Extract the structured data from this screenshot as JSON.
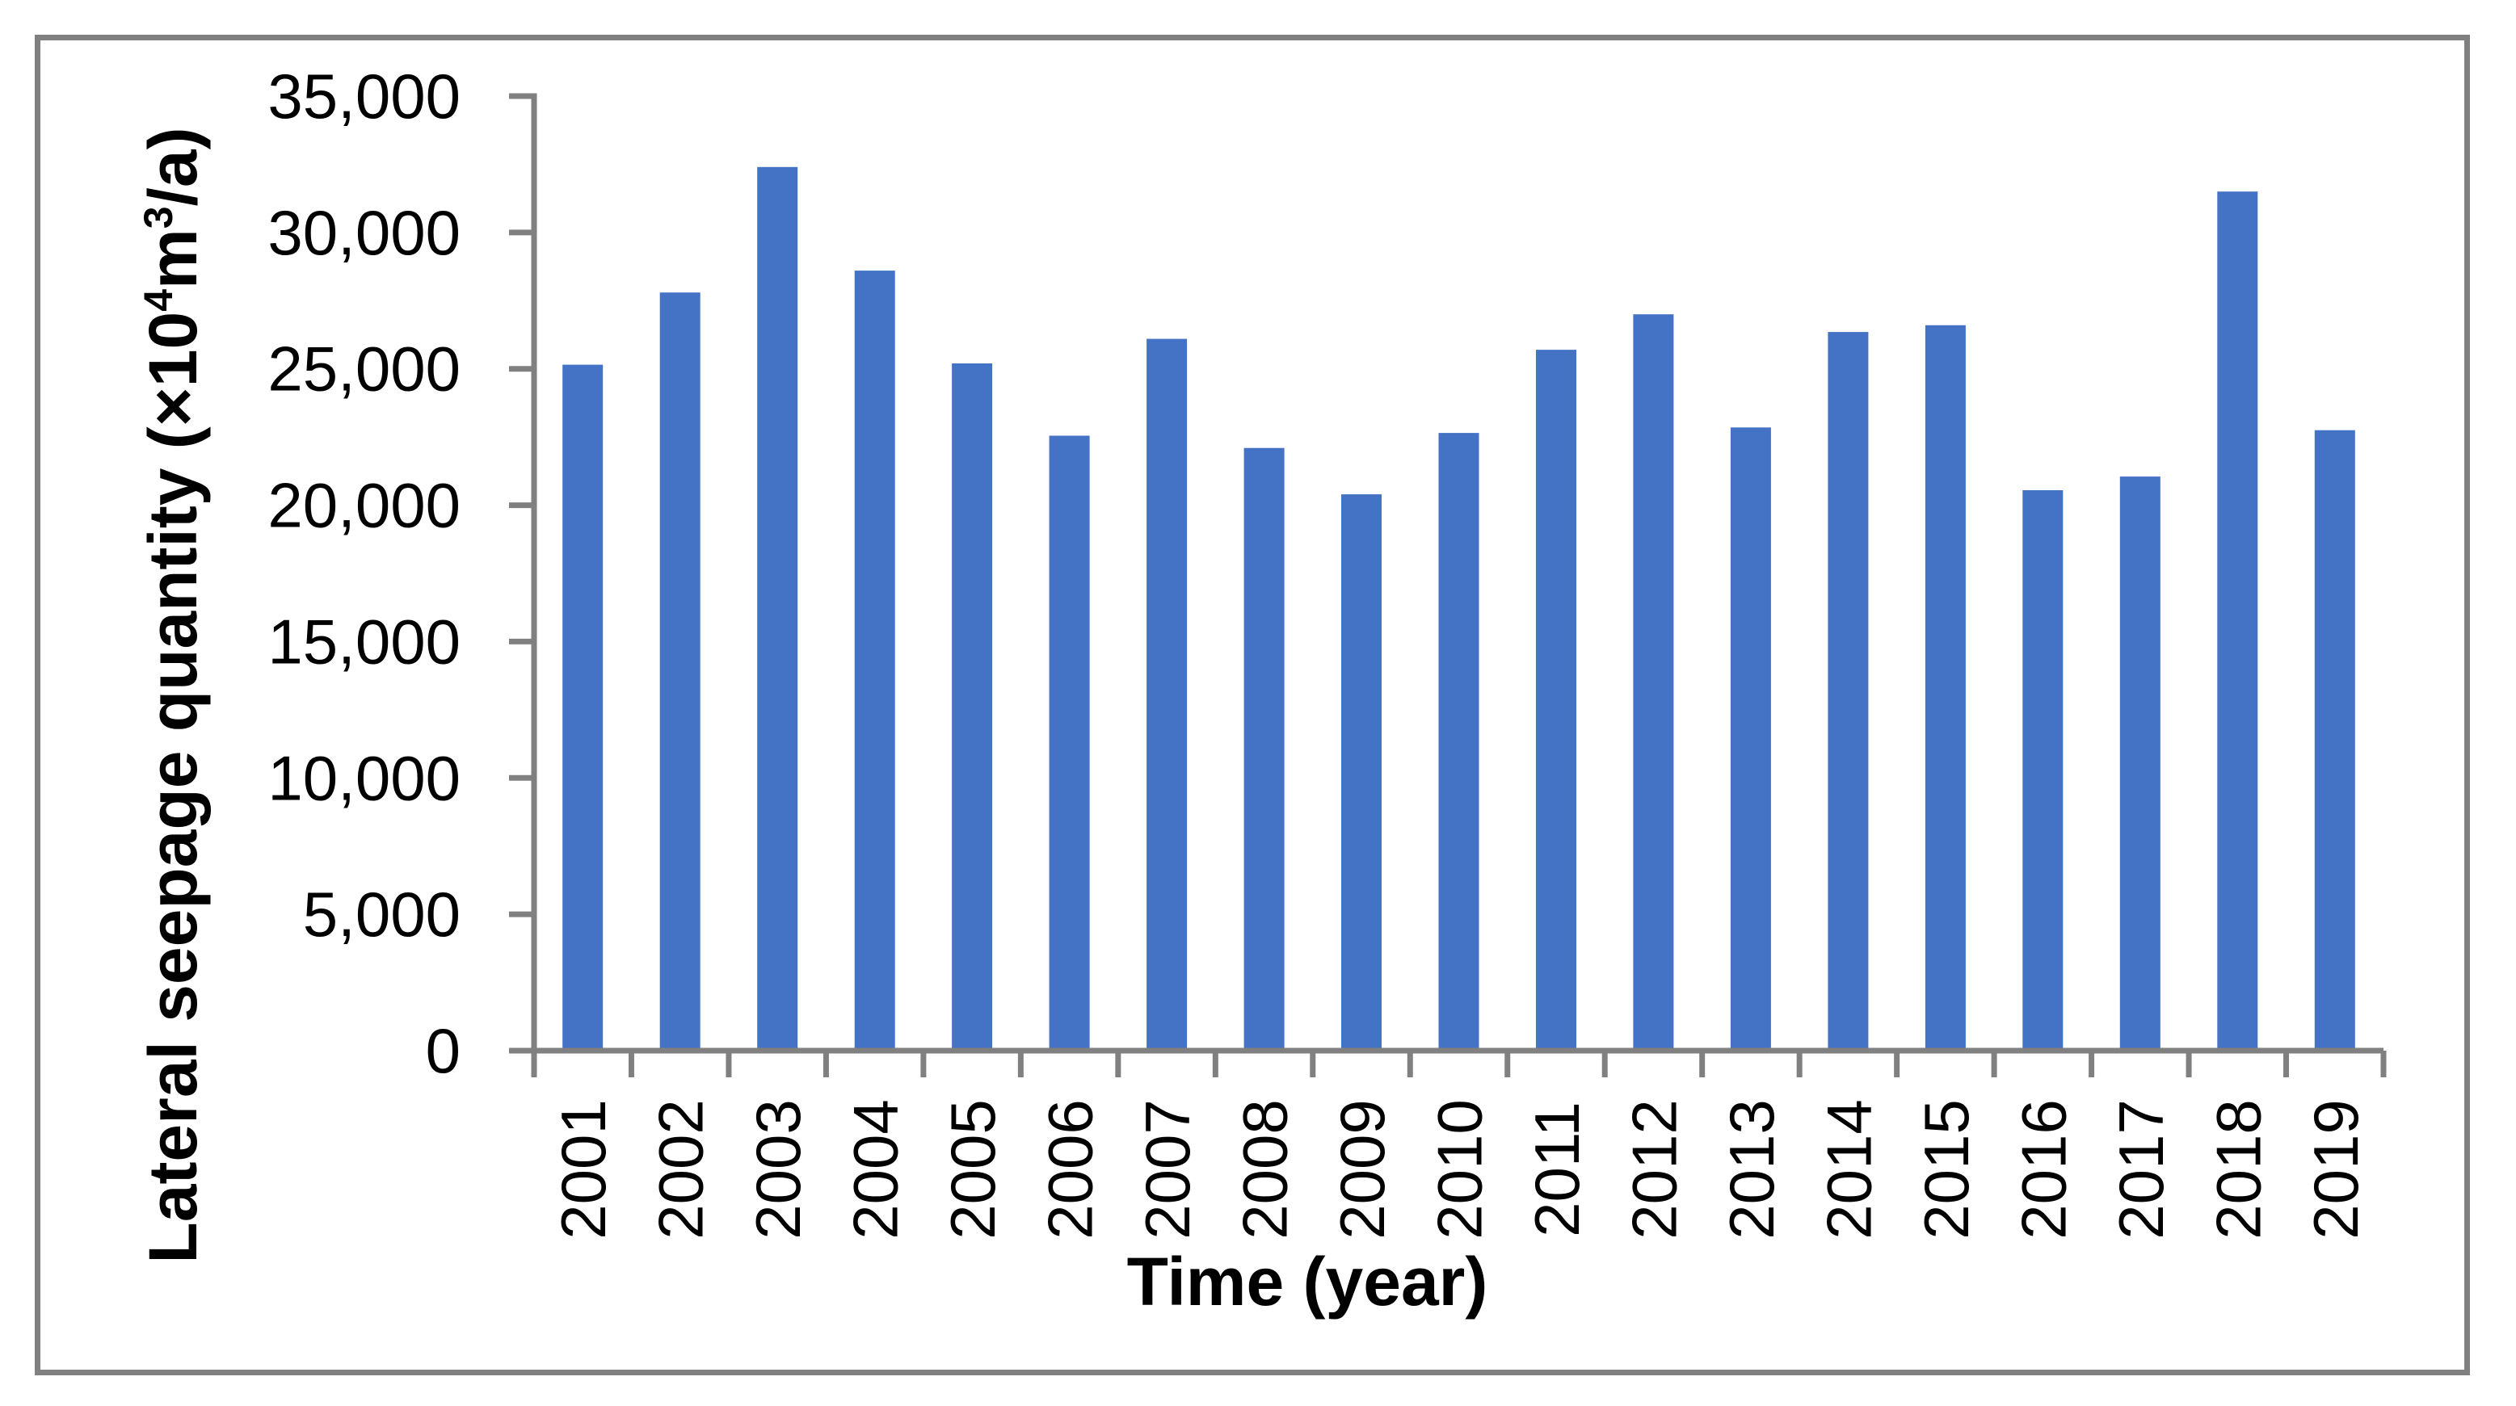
{
  "figure": {
    "background_color": "#ffffff",
    "border_color": "#808080"
  },
  "chart_data": {
    "type": "bar",
    "title": "",
    "xlabel": "Time (year)",
    "ylabel": "Lateral seepage quantity (×10⁴m³/a)",
    "ylabel_rich": [
      {
        "text": "Lateral seepage quantity (×10"
      },
      {
        "text": "4",
        "super": true
      },
      {
        "text": "m"
      },
      {
        "text": "3",
        "super": true
      },
      {
        "text": "/a)"
      }
    ],
    "categories": [
      "2001",
      "2002",
      "2003",
      "2004",
      "2005",
      "2006",
      "2007",
      "2008",
      "2009",
      "2010",
      "2011",
      "2012",
      "2013",
      "2014",
      "2015",
      "2016",
      "2017",
      "2018",
      "2019"
    ],
    "values": [
      25150,
      27800,
      32400,
      28600,
      25200,
      22550,
      26100,
      22100,
      20400,
      22650,
      25700,
      27000,
      22850,
      26350,
      26600,
      20550,
      21050,
      31500,
      22750
    ],
    "ylim": [
      0,
      35000
    ],
    "ytick_step": 5000,
    "ytick_labels": [
      "0",
      "5,000",
      "10,000",
      "15,000",
      "20,000",
      "25,000",
      "30,000",
      "35,000"
    ],
    "xtick_rotation_degrees": 90,
    "grid": false,
    "legend_position": "none",
    "bar_color": "#4472C4",
    "axis_color": "#808080",
    "text_color": "#000000"
  }
}
